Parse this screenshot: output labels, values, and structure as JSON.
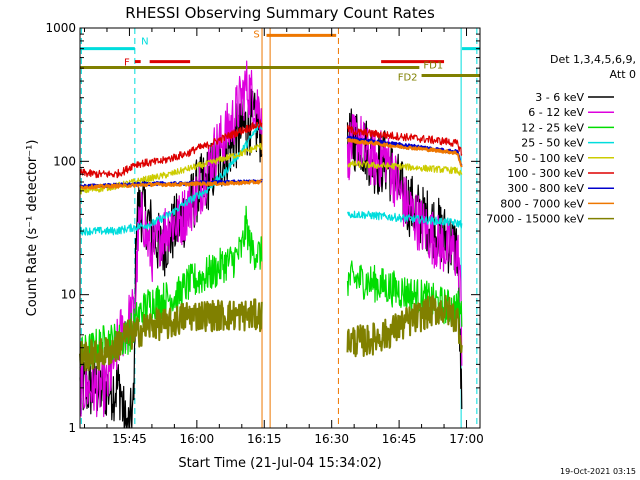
{
  "chart_data": {
    "type": "line",
    "title": "RHESSI Observing Summary Count Rates",
    "xlabel": "Start Time (21-Jul-04 15:34:02)",
    "ylabel": "Count Rate (s⁻¹ detector⁻¹)",
    "y_scale": "log",
    "ylim": [
      1,
      1000
    ],
    "xlim_minutes_after_1530": [
      4,
      93
    ],
    "x_ticks": [
      {
        "t": 15,
        "label": "15:45"
      },
      {
        "t": 30,
        "label": "16:00"
      },
      {
        "t": 45,
        "label": "16:15"
      },
      {
        "t": 60,
        "label": "16:30"
      },
      {
        "t": 75,
        "label": "16:45"
      },
      {
        "t": 90,
        "label": "17:00"
      }
    ],
    "y_ticks": [
      {
        "v": 1,
        "label": "1"
      },
      {
        "v": 10,
        "label": "10"
      },
      {
        "v": 100,
        "label": "100"
      },
      {
        "v": 1000,
        "label": "1000"
      }
    ],
    "legend": {
      "placement": "right",
      "header": [
        "Det 1,3,4,5,6,9,",
        "Att 0"
      ]
    },
    "footer_date": "19-Oct-2021 03:15",
    "flags": [
      {
        "label": "N",
        "color": "#00dddd",
        "segments": [
          [
            4,
            16.2
          ],
          [
            89,
            93
          ]
        ],
        "level": 700
      },
      {
        "label": "F",
        "color": "#dd0000",
        "segments": [
          [
            16.2,
            17.5
          ],
          [
            19.5,
            28.5
          ],
          [
            71,
            85
          ]
        ],
        "level": 560
      },
      {
        "label": "S",
        "color": "#ee7700",
        "segments": [
          [
            45.5,
            61
          ]
        ],
        "level": 880
      },
      {
        "label": "FD1",
        "color": "#808000",
        "segments": [
          [
            4,
            79.5
          ]
        ],
        "level": 505
      },
      {
        "label": "FD2",
        "color": "#808000",
        "segments": [
          [
            80,
            93
          ]
        ],
        "level": 440
      }
    ],
    "vlines": [
      {
        "t": 16.2,
        "color": "#00dddd",
        "style": "dashed"
      },
      {
        "t": 44.5,
        "color": "#ee7700",
        "style": "solid"
      },
      {
        "t": 46.3,
        "color": "#ee7700",
        "style": "solid"
      },
      {
        "t": 61.5,
        "color": "#ee7700",
        "style": "dashed"
      },
      {
        "t": 88.8,
        "color": "#00dddd",
        "style": "solid"
      },
      {
        "t": 4.3,
        "color": "#00dddd",
        "style": "dashed"
      },
      {
        "t": 92.3,
        "color": "#00dddd",
        "style": "dashed"
      }
    ],
    "gaps": [
      [
        44.5,
        63.5
      ],
      [
        89,
        93
      ]
    ],
    "series": [
      {
        "name": "3 - 6 keV",
        "color": "#000000",
        "points": [
          [
            4,
            2
          ],
          [
            10,
            2
          ],
          [
            13,
            2
          ],
          [
            14,
            1
          ],
          [
            15,
            1
          ],
          [
            16,
            1.5
          ],
          [
            16.5,
            40
          ],
          [
            18,
            45
          ],
          [
            20,
            30
          ],
          [
            22,
            22
          ],
          [
            24,
            28
          ],
          [
            26,
            35
          ],
          [
            28,
            42
          ],
          [
            30,
            60
          ],
          [
            32,
            70
          ],
          [
            34,
            90
          ],
          [
            36,
            110
          ],
          [
            38,
            140
          ],
          [
            40,
            170
          ],
          [
            42,
            200
          ],
          [
            44,
            170
          ],
          [
            63.5,
            110
          ],
          [
            64,
            140
          ],
          [
            66,
            150
          ],
          [
            68,
            120
          ],
          [
            70,
            95
          ],
          [
            72,
            100
          ],
          [
            74,
            75
          ],
          [
            76,
            55
          ],
          [
            78,
            45
          ],
          [
            80,
            38
          ],
          [
            82,
            35
          ],
          [
            84,
            30
          ],
          [
            86,
            25
          ],
          [
            88,
            22
          ],
          [
            88.8,
            2
          ],
          [
            89,
            1
          ]
        ]
      },
      {
        "name": "6 - 12 keV",
        "color": "#dd00dd",
        "points": [
          [
            4,
            2
          ],
          [
            10,
            2
          ],
          [
            13,
            5
          ],
          [
            15,
            6.5
          ],
          [
            16.2,
            7.5
          ],
          [
            17,
            30
          ],
          [
            18,
            40
          ],
          [
            19,
            25
          ],
          [
            20,
            20
          ],
          [
            22,
            28
          ],
          [
            24,
            35
          ],
          [
            26,
            35
          ],
          [
            28,
            45
          ],
          [
            30,
            55
          ],
          [
            32,
            80
          ],
          [
            34,
            120
          ],
          [
            36,
            150
          ],
          [
            38,
            200
          ],
          [
            40,
            300
          ],
          [
            41,
            370
          ],
          [
            42,
            320
          ],
          [
            44,
            250
          ],
          [
            63.5,
            90
          ],
          [
            64,
            130
          ],
          [
            66,
            150
          ],
          [
            68,
            110
          ],
          [
            70,
            100
          ],
          [
            72,
            110
          ],
          [
            74,
            75
          ],
          [
            76,
            50
          ],
          [
            78,
            40
          ],
          [
            80,
            33
          ],
          [
            82,
            28
          ],
          [
            84,
            24
          ],
          [
            86,
            22
          ],
          [
            88,
            20
          ],
          [
            88.5,
            16
          ],
          [
            89,
            4
          ],
          [
            90,
            3
          ],
          [
            92,
            3
          ]
        ]
      },
      {
        "name": "12 - 25 keV",
        "color": "#00dd00",
        "points": [
          [
            4,
            3.5
          ],
          [
            10,
            4.5
          ],
          [
            13,
            4.5
          ],
          [
            15,
            5
          ],
          [
            17,
            7
          ],
          [
            20,
            9
          ],
          [
            22,
            9
          ],
          [
            24,
            9.5
          ],
          [
            26,
            10
          ],
          [
            28,
            12
          ],
          [
            30,
            13
          ],
          [
            32,
            14
          ],
          [
            34,
            15
          ],
          [
            36,
            17
          ],
          [
            38,
            18
          ],
          [
            40,
            22
          ],
          [
            41,
            34
          ],
          [
            42,
            22
          ],
          [
            44,
            20
          ],
          [
            63.5,
            13
          ],
          [
            66,
            13
          ],
          [
            68,
            12.5
          ],
          [
            70,
            12
          ],
          [
            72,
            11.5
          ],
          [
            74,
            11
          ],
          [
            76,
            10.5
          ],
          [
            78,
            10
          ],
          [
            80,
            9.5
          ],
          [
            82,
            9
          ],
          [
            84,
            8.5
          ],
          [
            86,
            8
          ],
          [
            88,
            8
          ],
          [
            89,
            7
          ],
          [
            92,
            6
          ]
        ]
      },
      {
        "name": "25 - 50 keV",
        "color": "#00dddd",
        "points": [
          [
            4,
            30
          ],
          [
            8,
            30
          ],
          [
            10,
            30
          ],
          [
            12,
            30
          ],
          [
            14,
            31
          ],
          [
            16,
            32
          ],
          [
            18,
            33
          ],
          [
            20,
            34
          ],
          [
            22,
            37
          ],
          [
            24,
            40
          ],
          [
            26,
            45
          ],
          [
            28,
            50
          ],
          [
            30,
            55
          ],
          [
            32,
            60
          ],
          [
            34,
            70
          ],
          [
            36,
            80
          ],
          [
            38,
            100
          ],
          [
            40,
            120
          ],
          [
            42,
            150
          ],
          [
            44,
            190
          ],
          [
            63.5,
            40
          ],
          [
            66,
            40
          ],
          [
            70,
            39
          ],
          [
            74,
            38
          ],
          [
            78,
            37
          ],
          [
            82,
            36
          ],
          [
            86,
            35
          ],
          [
            88.8,
            34
          ],
          [
            89,
            33
          ],
          [
            92,
            31
          ]
        ]
      },
      {
        "name": "50 - 100 keV",
        "color": "#cccc00",
        "points": [
          [
            4,
            60
          ],
          [
            8,
            62
          ],
          [
            12,
            65
          ],
          [
            16,
            70
          ],
          [
            20,
            75
          ],
          [
            24,
            80
          ],
          [
            28,
            88
          ],
          [
            32,
            95
          ],
          [
            36,
            105
          ],
          [
            40,
            115
          ],
          [
            44,
            130
          ],
          [
            63.5,
            95
          ],
          [
            66,
            95
          ],
          [
            70,
            93
          ],
          [
            74,
            92
          ],
          [
            78,
            90
          ],
          [
            82,
            88
          ],
          [
            86,
            86
          ],
          [
            88,
            85
          ],
          [
            89,
            78
          ],
          [
            92,
            68
          ]
        ]
      },
      {
        "name": "100 - 300 keV",
        "color": "#dd0000",
        "points": [
          [
            4,
            82
          ],
          [
            8,
            80
          ],
          [
            12,
            80
          ],
          [
            14,
            85
          ],
          [
            16,
            95
          ],
          [
            18,
            97
          ],
          [
            20,
            98
          ],
          [
            22,
            100
          ],
          [
            24,
            105
          ],
          [
            26,
            110
          ],
          [
            28,
            115
          ],
          [
            30,
            125
          ],
          [
            32,
            130
          ],
          [
            34,
            140
          ],
          [
            36,
            150
          ],
          [
            38,
            160
          ],
          [
            40,
            170
          ],
          [
            42,
            180
          ],
          [
            44,
            190
          ],
          [
            63.5,
            175
          ],
          [
            66,
            165
          ],
          [
            70,
            160
          ],
          [
            74,
            155
          ],
          [
            78,
            150
          ],
          [
            82,
            145
          ],
          [
            86,
            140
          ],
          [
            88,
            135
          ],
          [
            89,
            115
          ],
          [
            92,
            90
          ]
        ]
      },
      {
        "name": "300 - 800 keV",
        "color": "#0000cc",
        "points": [
          [
            4,
            65
          ],
          [
            10,
            66
          ],
          [
            16,
            67
          ],
          [
            20,
            68
          ],
          [
            26,
            68
          ],
          [
            30,
            69
          ],
          [
            36,
            70
          ],
          [
            40,
            70
          ],
          [
            44,
            71
          ],
          [
            63.5,
            150
          ],
          [
            66,
            145
          ],
          [
            70,
            140
          ],
          [
            74,
            135
          ],
          [
            78,
            130
          ],
          [
            82,
            125
          ],
          [
            86,
            120
          ],
          [
            88,
            118
          ],
          [
            89,
            90
          ],
          [
            92,
            75
          ]
        ]
      },
      {
        "name": "800 - 7000 keV",
        "color": "#ee7700",
        "points": [
          [
            4,
            64
          ],
          [
            10,
            65
          ],
          [
            16,
            66
          ],
          [
            20,
            67
          ],
          [
            26,
            67
          ],
          [
            30,
            68
          ],
          [
            36,
            68
          ],
          [
            40,
            69
          ],
          [
            44,
            70
          ],
          [
            63.5,
            145
          ],
          [
            66,
            140
          ],
          [
            70,
            136
          ],
          [
            74,
            130
          ],
          [
            78,
            126
          ],
          [
            82,
            122
          ],
          [
            86,
            118
          ],
          [
            88,
            115
          ],
          [
            89,
            88
          ],
          [
            92,
            72
          ]
        ]
      },
      {
        "name": "7000 - 15000 keV",
        "color": "#808000",
        "points": [
          [
            4,
            3.5
          ],
          [
            8,
            3.5
          ],
          [
            12,
            4
          ],
          [
            14,
            5
          ],
          [
            16,
            5
          ],
          [
            18,
            5.5
          ],
          [
            20,
            6
          ],
          [
            22,
            6
          ],
          [
            24,
            6
          ],
          [
            26,
            6.5
          ],
          [
            28,
            7
          ],
          [
            30,
            7
          ],
          [
            32,
            7
          ],
          [
            34,
            7
          ],
          [
            36,
            7
          ],
          [
            38,
            7
          ],
          [
            40,
            7
          ],
          [
            42,
            7
          ],
          [
            44,
            7
          ],
          [
            63.5,
            4.5
          ],
          [
            66,
            4.5
          ],
          [
            68,
            4.5
          ],
          [
            70,
            4.8
          ],
          [
            72,
            5
          ],
          [
            74,
            5.5
          ],
          [
            76,
            6
          ],
          [
            78,
            6.5
          ],
          [
            80,
            7
          ],
          [
            82,
            7.5
          ],
          [
            84,
            7.8
          ],
          [
            86,
            7.5
          ],
          [
            88,
            6.5
          ],
          [
            89,
            4.5
          ],
          [
            90,
            4
          ],
          [
            92,
            3.5
          ]
        ]
      }
    ]
  }
}
